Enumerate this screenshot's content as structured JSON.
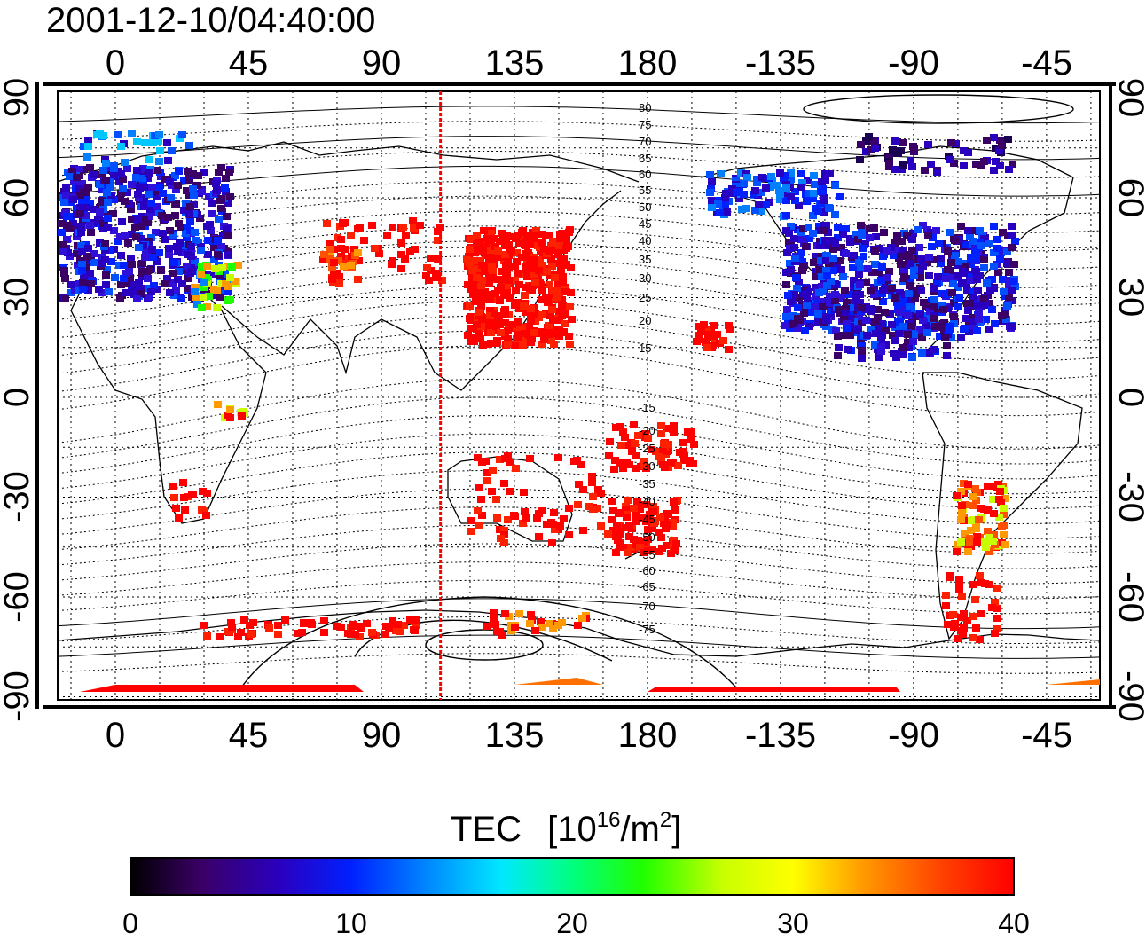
{
  "title": "2001-12-10/04:40:00",
  "map": {
    "x_tick_labels": [
      "0",
      "45",
      "90",
      "135",
      "180",
      "-135",
      "-90",
      "-45"
    ],
    "y_tick_labels": [
      "90",
      "60",
      "30",
      "0",
      "-30",
      "-60",
      "-90"
    ],
    "marker_longitude_deg": 110,
    "marker_color": "#ff0000"
  },
  "magnetic_latitude_labels": {
    "north": [
      "80",
      "75",
      "70",
      "65",
      "60",
      "55",
      "50",
      "45",
      "40",
      "35",
      "30",
      "25",
      "20",
      "15"
    ],
    "south": [
      "-15",
      "-20",
      "-25",
      "-30",
      "-35",
      "-40",
      "-45",
      "-50",
      "-55",
      "-60",
      "-65",
      "-70",
      "-75"
    ]
  },
  "colorbar": {
    "title": "TEC",
    "unit_prefix": "[10",
    "unit_exp1": "16",
    "unit_mid": "/m",
    "unit_exp2": "2",
    "unit_suffix": "]",
    "tick_labels": [
      "0",
      "10",
      "20",
      "30",
      "40"
    ],
    "range": [
      0,
      40
    ],
    "colors": [
      "#000000",
      "#3a0066",
      "#2a00c0",
      "#0020ff",
      "#0080ff",
      "#00e8ff",
      "#00ff80",
      "#20ff00",
      "#c8ff00",
      "#ffff00",
      "#ff9900",
      "#ff4000",
      "#ff0000"
    ]
  }
}
